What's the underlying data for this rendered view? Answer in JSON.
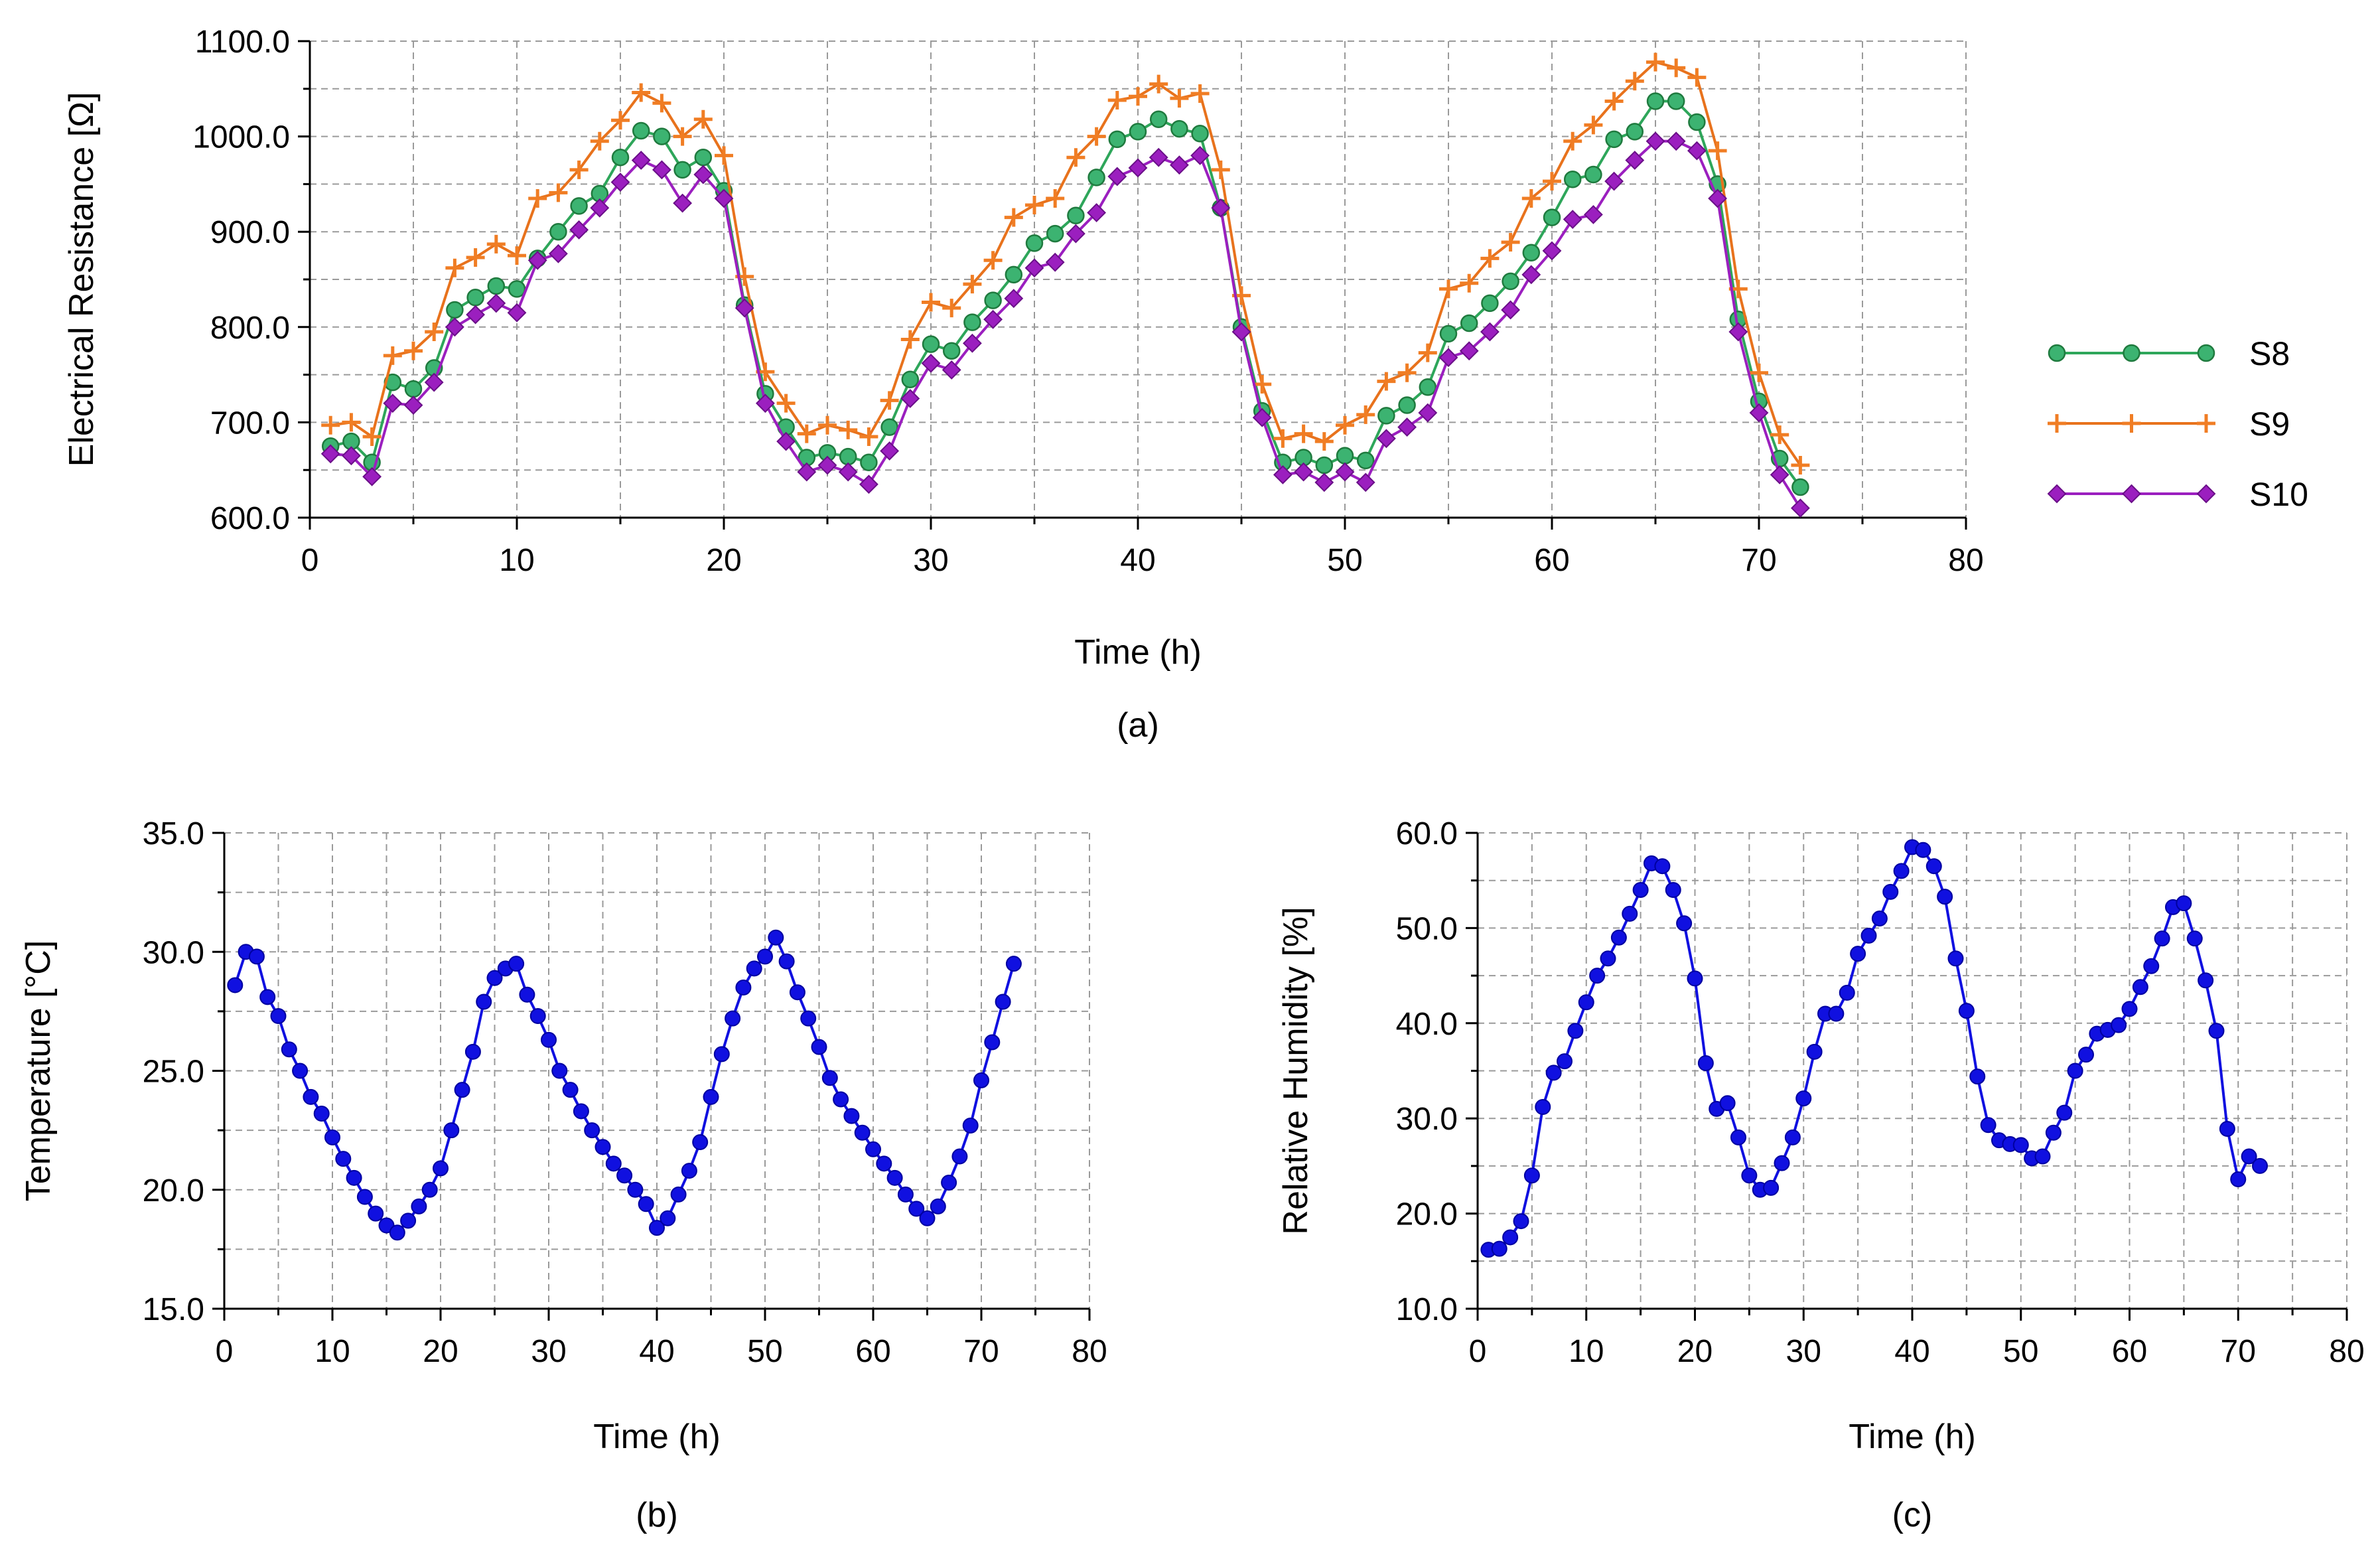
{
  "chart_data": [
    {
      "id": "resistance",
      "type": "line",
      "panel_label": "(a)",
      "title": "",
      "xlabel": "Time (h)",
      "ylabel": "Electrical Resistance [Ω]",
      "xlim": [
        0,
        80
      ],
      "ylim": [
        600,
        1100
      ],
      "xticks": [
        "0",
        "10",
        "20",
        "30",
        "40",
        "50",
        "60",
        "70",
        "80"
      ],
      "yticks": [
        "600.0",
        "700.0",
        "800.0",
        "900.0",
        "1000.0",
        "1100.0"
      ],
      "grid": true,
      "legend_position": "right",
      "x": [
        1,
        2,
        3,
        4,
        5,
        6,
        7,
        8,
        9,
        10,
        11,
        12,
        13,
        14,
        15,
        16,
        17,
        18,
        19,
        20,
        21,
        22,
        23,
        24,
        25,
        26,
        27,
        28,
        29,
        30,
        31,
        32,
        33,
        34,
        35,
        36,
        37,
        38,
        39,
        40,
        41,
        42,
        43,
        44,
        45,
        46,
        47,
        48,
        49,
        50,
        51,
        52,
        53,
        54,
        55,
        56,
        57,
        58,
        59,
        60,
        61,
        62,
        63,
        64,
        65,
        66,
        67,
        68,
        69,
        70,
        71,
        72
      ],
      "series": [
        {
          "name": "S8",
          "color": "#3cb371",
          "line_color": "#2ea65a",
          "marker": "circle",
          "values": [
            675,
            680,
            658,
            742,
            735,
            757,
            818,
            831,
            843,
            840,
            872,
            900,
            927,
            940,
            978,
            1006,
            1000,
            965,
            978,
            943,
            823,
            730,
            695,
            663,
            668,
            664,
            658,
            695,
            745,
            782,
            775,
            805,
            828,
            855,
            888,
            898,
            917,
            957,
            997,
            1005,
            1018,
            1008,
            1003,
            925,
            800,
            712,
            658,
            663,
            655,
            665,
            660,
            707,
            718,
            737,
            793,
            804,
            825,
            848,
            878,
            915,
            955,
            960,
            997,
            1005,
            1037,
            1037,
            1015,
            950,
            808,
            722,
            662,
            632
          ]
        },
        {
          "name": "S9",
          "color": "#f07d24",
          "line_color": "#e8721c",
          "marker": "plus",
          "values": [
            697,
            700,
            685,
            770,
            775,
            795,
            862,
            873,
            887,
            875,
            935,
            941,
            965,
            995,
            1017,
            1046,
            1035,
            1000,
            1018,
            980,
            853,
            753,
            720,
            688,
            697,
            692,
            685,
            723,
            787,
            826,
            820,
            845,
            870,
            915,
            928,
            935,
            978,
            1000,
            1038,
            1042,
            1055,
            1040,
            1045,
            965,
            833,
            740,
            683,
            688,
            680,
            697,
            708,
            743,
            752,
            773,
            840,
            846,
            872,
            889,
            935,
            953,
            995,
            1012,
            1037,
            1058,
            1078,
            1072,
            1062,
            985,
            840,
            752,
            687,
            655
          ]
        },
        {
          "name": "S10",
          "color": "#9b1fbf",
          "line_color": "#9b1fbf",
          "marker": "diamond",
          "values": [
            667,
            665,
            643,
            720,
            718,
            742,
            800,
            813,
            825,
            815,
            870,
            877,
            902,
            925,
            952,
            975,
            965,
            930,
            960,
            935,
            820,
            720,
            680,
            648,
            655,
            648,
            635,
            670,
            725,
            762,
            755,
            783,
            808,
            830,
            862,
            868,
            898,
            920,
            958,
            967,
            978,
            970,
            980,
            925,
            795,
            705,
            645,
            648,
            637,
            648,
            637,
            683,
            695,
            710,
            768,
            775,
            795,
            818,
            855,
            880,
            913,
            918,
            953,
            975,
            995,
            995,
            985,
            935,
            795,
            710,
            645,
            610
          ]
        }
      ]
    },
    {
      "id": "temperature",
      "type": "line",
      "panel_label": "(b)",
      "title": "",
      "xlabel": "Time (h)",
      "ylabel": "Temperature [°C]",
      "xlim": [
        0,
        80
      ],
      "ylim": [
        15,
        35
      ],
      "xticks": [
        "0",
        "10",
        "20",
        "30",
        "40",
        "50",
        "60",
        "70",
        "80"
      ],
      "yticks": [
        "15.0",
        "20.0",
        "25.0",
        "30.0",
        "35.0"
      ],
      "grid": true,
      "series": [
        {
          "name": "Temperature",
          "color": "#1010e0",
          "marker": "circle",
          "values": [
            28.6,
            30.0,
            29.8,
            28.1,
            27.3,
            25.9,
            25.0,
            23.9,
            23.2,
            22.2,
            21.3,
            20.5,
            19.7,
            19.0,
            18.5,
            18.2,
            18.7,
            19.3,
            20.0,
            20.9,
            22.5,
            24.2,
            25.8,
            27.9,
            28.9,
            29.3,
            29.5,
            28.2,
            27.3,
            26.3,
            25.0,
            24.2,
            23.3,
            22.5,
            21.8,
            21.1,
            20.6,
            20.0,
            19.4,
            18.4,
            18.8,
            19.8,
            20.8,
            22.0,
            23.9,
            25.7,
            27.2,
            28.5,
            29.3,
            29.8,
            30.6,
            29.6,
            28.3,
            27.2,
            26.0,
            24.7,
            23.8,
            23.1,
            22.4,
            21.7,
            21.1,
            20.5,
            19.8,
            19.2,
            18.8,
            19.3,
            20.3,
            21.4,
            22.7,
            24.6,
            26.2,
            27.9,
            29.5
          ]
        }
      ]
    },
    {
      "id": "humidity",
      "type": "line",
      "panel_label": "(c)",
      "title": "",
      "xlabel": "Time (h)",
      "ylabel": "Relative Humidity [%]",
      "xlim": [
        0,
        80
      ],
      "ylim": [
        10,
        60
      ],
      "xticks": [
        "0",
        "10",
        "20",
        "30",
        "40",
        "50",
        "60",
        "70",
        "80"
      ],
      "yticks": [
        "10.0",
        "20.0",
        "30.0",
        "40.0",
        "50.0",
        "60.0"
      ],
      "grid": true,
      "series": [
        {
          "name": "Relative Humidity",
          "color": "#1010e0",
          "marker": "circle",
          "values": [
            16.2,
            16.3,
            17.5,
            19.2,
            24.0,
            31.2,
            34.8,
            36.0,
            39.2,
            42.2,
            45.0,
            46.8,
            49.0,
            51.5,
            54.0,
            56.8,
            56.5,
            54.0,
            50.5,
            44.7,
            35.8,
            31.0,
            31.6,
            28.0,
            24.0,
            22.5,
            22.7,
            25.3,
            28.0,
            32.1,
            37.0,
            41.0,
            41.0,
            43.2,
            47.3,
            49.2,
            51.0,
            53.8,
            56.0,
            58.5,
            58.2,
            56.5,
            53.3,
            46.8,
            41.3,
            34.4,
            29.3,
            27.7,
            27.3,
            27.2,
            25.8,
            26.0,
            28.5,
            30.6,
            35.0,
            36.7,
            38.9,
            39.3,
            39.8,
            41.5,
            43.8,
            46.0,
            48.9,
            52.2,
            52.6,
            48.9,
            44.5,
            39.2,
            28.9,
            23.6,
            26.0,
            25.0
          ]
        }
      ]
    }
  ]
}
